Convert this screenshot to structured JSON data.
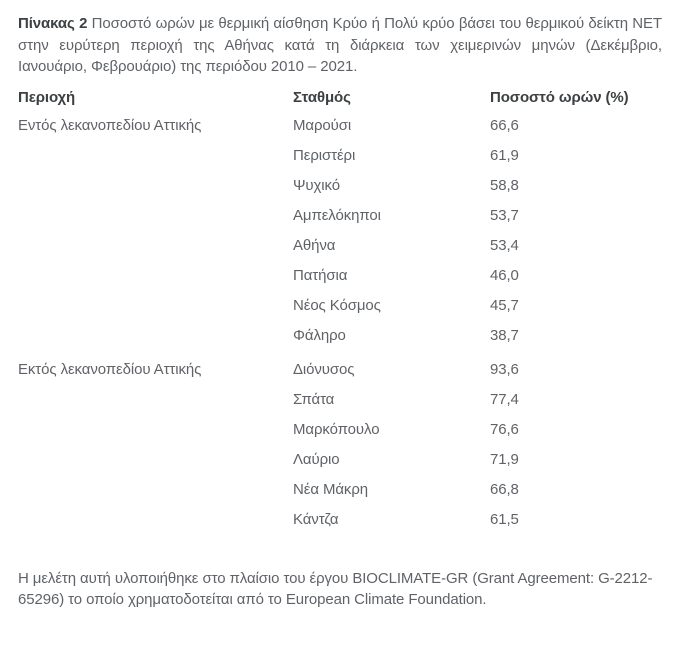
{
  "caption": {
    "label": "Πίνακας 2",
    "text": "Ποσοστό ωρών με θερμική αίσθηση Κρύο ή Πολύ κρύο βάσει του θερμικού δείκτη NET στην ευρύτερη περιοχή της Αθήνας κατά τη διάρκεια των χειμερινών μηνών (Δεκέμβριο, Ιανουάριο, Φεβρουάριο) της περιόδου 2010 – 2021."
  },
  "table": {
    "headers": [
      "Περιοχή",
      "Σταθμός",
      "Ποσοστό ωρών (%)"
    ],
    "groups": [
      {
        "region": "Εντός λεκανοπεδίου Αττικής",
        "rows": [
          {
            "station": "Μαρούσι",
            "value": "66,6"
          },
          {
            "station": "Περιστέρι",
            "value": "61,9"
          },
          {
            "station": "Ψυχικό",
            "value": "58,8"
          },
          {
            "station": "Αμπελόκηποι",
            "value": "53,7"
          },
          {
            "station": "Αθήνα",
            "value": "53,4"
          },
          {
            "station": "Πατήσια",
            "value": "46,0"
          },
          {
            "station": "Νέος Κόσμος",
            "value": "45,7"
          },
          {
            "station": "Φάληρο",
            "value": "38,7"
          }
        ]
      },
      {
        "region": "Εκτός λεκανοπεδίου Αττικής",
        "rows": [
          {
            "station": "Διόνυσος",
            "value": "93,6"
          },
          {
            "station": "Σπάτα",
            "value": "77,4"
          },
          {
            "station": "Μαρκόπουλο",
            "value": "76,6"
          },
          {
            "station": "Λαύριο",
            "value": "71,9"
          },
          {
            "station": "Νέα Μάκρη",
            "value": "66,8"
          },
          {
            "station": "Κάντζα",
            "value": "61,5"
          }
        ]
      }
    ]
  },
  "footer": {
    "text": "Η μελέτη αυτή υλοποιήθηκε στο πλαίσιο του έργου BIOCLIMATE-GR (Grant Agreement: G-2212-65296) το οποίο χρηματοδοτείται από το European Climate Foundation."
  },
  "colors": {
    "background": "#ffffff",
    "heading_text": "#3c4043",
    "body_text": "#5f6368"
  }
}
